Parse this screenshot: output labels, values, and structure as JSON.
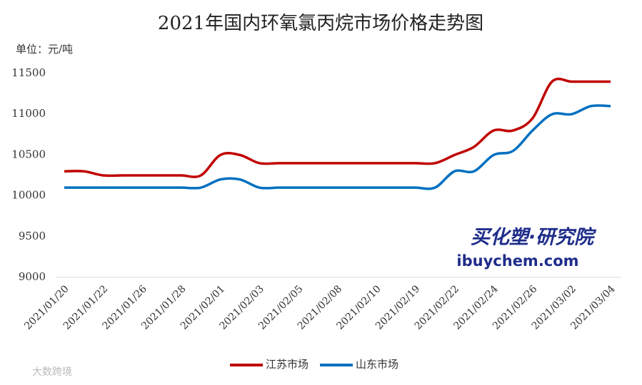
{
  "chart_data": {
    "type": "line",
    "title": "2021年国内环氧氯丙烷市场价格走势图",
    "y_label": "单位：元/吨",
    "categories": [
      "2021/01/20",
      null,
      "2021/01/22",
      null,
      "2021/01/26",
      null,
      "2021/01/28",
      null,
      "2021/02/01",
      null,
      "2021/02/03",
      null,
      "2021/02/05",
      null,
      "2021/02/08",
      null,
      "2021/02/10",
      null,
      "2021/02/19",
      null,
      "2021/02/22",
      null,
      "2021/02/24",
      null,
      "2021/02/26",
      null,
      "2021/03/02",
      null,
      "2021/03/04"
    ],
    "series": [
      {
        "name": "江苏市场",
        "color": "#c00000",
        "values": [
          10300,
          10300,
          10250,
          10250,
          10250,
          10250,
          10250,
          10250,
          10500,
          10500,
          10400,
          10400,
          10400,
          10400,
          10400,
          10400,
          10400,
          10400,
          10400,
          10400,
          10500,
          10600,
          10800,
          10800,
          10950,
          11400,
          11400,
          11400,
          11400
        ]
      },
      {
        "name": "山东市场",
        "color": "#0070c0",
        "values": [
          10100,
          10100,
          10100,
          10100,
          10100,
          10100,
          10100,
          10100,
          10200,
          10200,
          10100,
          10100,
          10100,
          10100,
          10100,
          10100,
          10100,
          10100,
          10100,
          10100,
          10300,
          10300,
          10500,
          10550,
          10800,
          11000,
          11000,
          11100,
          11100
        ]
      }
    ],
    "ylim": [
      9000,
      11500
    ],
    "yticks": [
      9000,
      9500,
      10000,
      10500,
      11000,
      11500
    ],
    "grid": false,
    "legend": "bottom",
    "watermark": [
      "买化塑·研究院",
      "ibuychem.com",
      "大数跨境"
    ]
  }
}
